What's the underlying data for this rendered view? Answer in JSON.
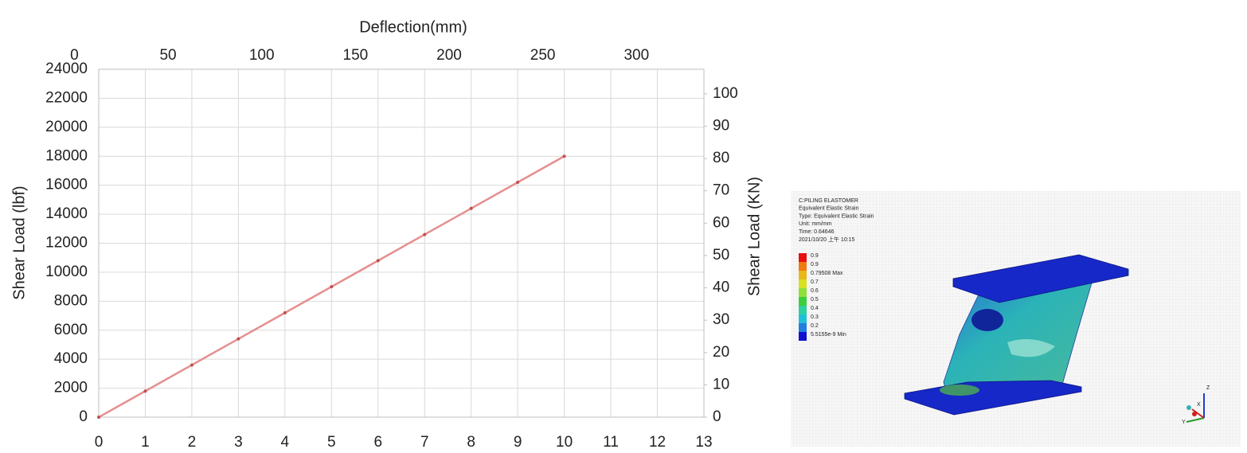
{
  "chart_data": {
    "type": "line",
    "x_title": "Deflection(mm)",
    "y_title": "Shear Load  (lbf)",
    "y2_title": "Shear Load (KN)",
    "x": [
      0,
      1,
      2,
      3,
      4,
      5,
      6,
      7,
      8,
      9,
      10
    ],
    "series": [
      {
        "color": "#e58f8f",
        "marker_color": "#c0504d",
        "values": [
          0,
          1800,
          3600,
          5400,
          7200,
          9000,
          10800,
          12600,
          14400,
          16200,
          18000
        ]
      }
    ],
    "xlim": [
      0,
      13
    ],
    "xticks": [
      0,
      1,
      2,
      3,
      4,
      5,
      6,
      7,
      8,
      9,
      10,
      11,
      12,
      13
    ],
    "x2lim": [
      13,
      336
    ],
    "x2ticks": [
      0,
      50,
      100,
      150,
      200,
      250,
      300
    ],
    "ylim": [
      0,
      24000
    ],
    "yticks": [
      0,
      2000,
      4000,
      6000,
      8000,
      10000,
      12000,
      14000,
      16000,
      18000,
      20000,
      22000,
      24000
    ],
    "y2lim": [
      0,
      107.6
    ],
    "y2ticks": [
      0,
      10,
      20,
      30,
      40,
      50,
      60,
      70,
      80,
      90,
      100
    ],
    "grid": true
  },
  "fea_image": {
    "info": [
      "C:PILING ELASTOMER",
      "Equivalent Elastic Strain",
      "Type: Equivalent Elastic Strain",
      "Unit: mm/mm",
      "Time: 0.64646",
      "2021/10/20 上午 10:15"
    ],
    "legend": [
      "0.9",
      "0.9",
      "0.79508 Max",
      "0.7",
      "0.6",
      "0.5",
      "0.4",
      "0.3",
      "0.2",
      "5.5155e-9 Min"
    ],
    "triad": [
      "Z",
      "Y",
      "X"
    ]
  }
}
